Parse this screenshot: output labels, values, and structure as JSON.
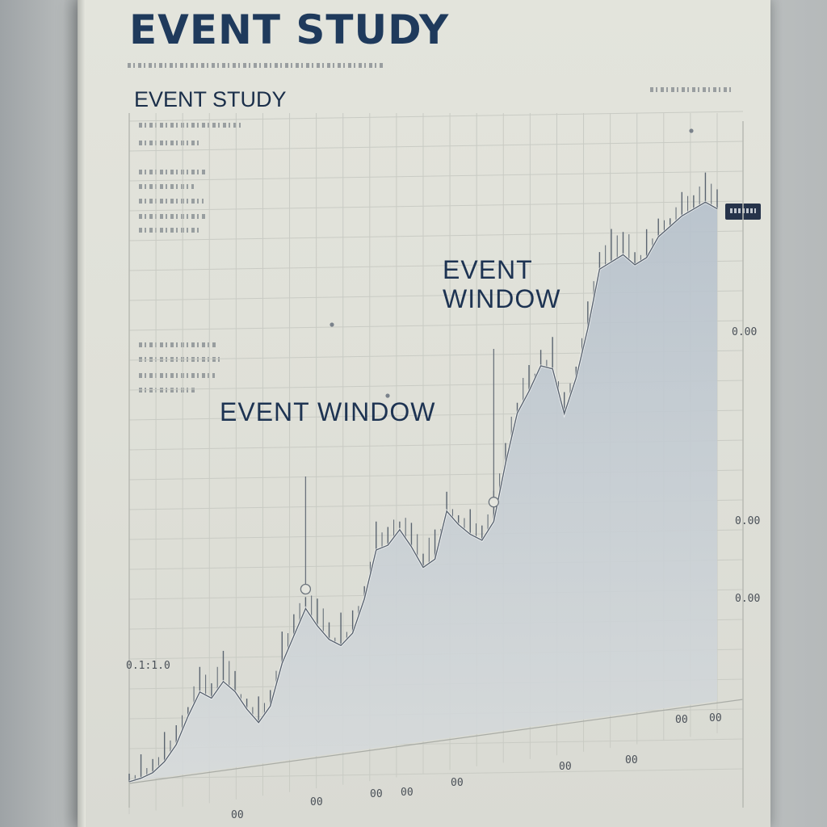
{
  "header": {
    "title": "EVENT STUDY"
  },
  "chart_data": {
    "type": "line",
    "title": "EVENT STUDY",
    "xlabel": "",
    "ylabel": "",
    "x": [
      0,
      2,
      4,
      6,
      8,
      10,
      12,
      14,
      16,
      18,
      20,
      22,
      24,
      26,
      28,
      30,
      32,
      34,
      36,
      38,
      40,
      42,
      44,
      46,
      48,
      50,
      52,
      54,
      56,
      58,
      60,
      62,
      64,
      66,
      68,
      70,
      72,
      74,
      76,
      78,
      80,
      82,
      84,
      86,
      88,
      90,
      92,
      94,
      96,
      98,
      100
    ],
    "series": [
      {
        "values": [
          0,
          1,
          3,
          8,
          16,
          30,
          42,
          38,
          46,
          40,
          30,
          22,
          30,
          52,
          66,
          80,
          70,
          62,
          58,
          64,
          82,
          108,
          110,
          118,
          108,
          96,
          100,
          126,
          118,
          112,
          108,
          118,
          150,
          178,
          190,
          204,
          202,
          176,
          196,
          224,
          258,
          262,
          266,
          260,
          264,
          276,
          282,
          288,
          292,
          296,
          292
        ]
      }
    ],
    "annotations": [
      {
        "label": "EVENT WINDOW",
        "x": 30
      },
      {
        "label": "EVENT WINDOW",
        "x": 62
      }
    ],
    "y_tick_labels": [
      "0.1:1.0",
      "0.00",
      "0.00",
      "0.00"
    ],
    "x_tick_labels": [
      "00",
      "00",
      "00",
      "00",
      "00",
      "00",
      "00",
      "00",
      "00"
    ],
    "xlim": [
      0,
      100
    ],
    "ylim": [
      0,
      320
    ],
    "grid": true,
    "legend": "none",
    "colors": {
      "line": "#5a6470",
      "area_top": "#b9c3cd",
      "area_bottom": "#d3d8da",
      "grid": "#c9cbc4",
      "text": "#1d3352"
    }
  }
}
